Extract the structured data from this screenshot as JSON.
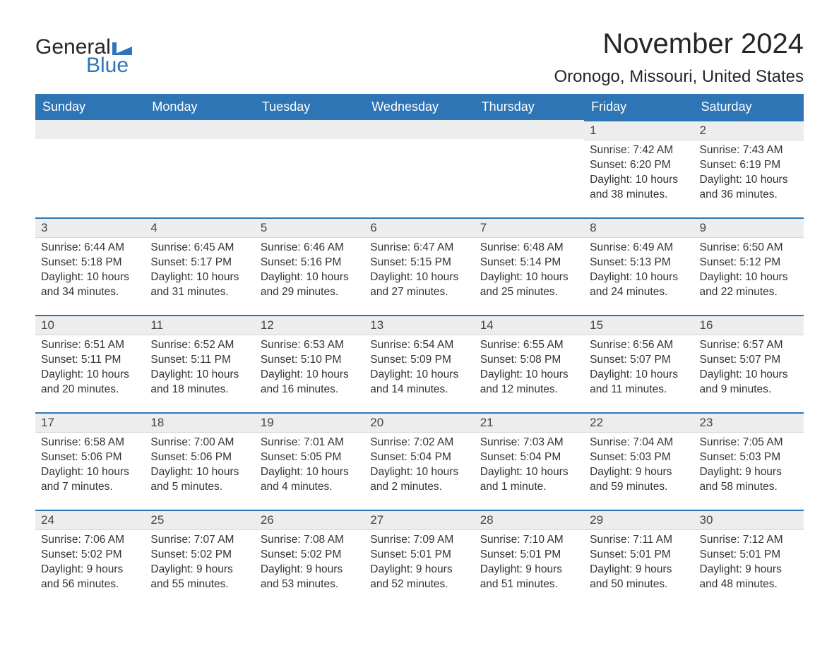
{
  "brand": {
    "text1": "General",
    "text2": "Blue",
    "flag_color": "#2e75b6"
  },
  "title": "November 2024",
  "location": "Oronogo, Missouri, United States",
  "colors": {
    "header_bg": "#2e75b6",
    "header_text": "#ffffff",
    "daynum_bg": "#ededed",
    "row_border": "#2e75b6",
    "body_text": "#333333",
    "page_bg": "#ffffff"
  },
  "fonts": {
    "title_size_pt": 30,
    "location_size_pt": 18,
    "th_size_pt": 14,
    "cell_size_pt": 12
  },
  "day_headers": [
    "Sunday",
    "Monday",
    "Tuesday",
    "Wednesday",
    "Thursday",
    "Friday",
    "Saturday"
  ],
  "weeks": [
    [
      null,
      null,
      null,
      null,
      null,
      {
        "n": "1",
        "sr": "Sunrise: 7:42 AM",
        "ss": "Sunset: 6:20 PM",
        "dl": "Daylight: 10 hours and 38 minutes."
      },
      {
        "n": "2",
        "sr": "Sunrise: 7:43 AM",
        "ss": "Sunset: 6:19 PM",
        "dl": "Daylight: 10 hours and 36 minutes."
      }
    ],
    [
      {
        "n": "3",
        "sr": "Sunrise: 6:44 AM",
        "ss": "Sunset: 5:18 PM",
        "dl": "Daylight: 10 hours and 34 minutes."
      },
      {
        "n": "4",
        "sr": "Sunrise: 6:45 AM",
        "ss": "Sunset: 5:17 PM",
        "dl": "Daylight: 10 hours and 31 minutes."
      },
      {
        "n": "5",
        "sr": "Sunrise: 6:46 AM",
        "ss": "Sunset: 5:16 PM",
        "dl": "Daylight: 10 hours and 29 minutes."
      },
      {
        "n": "6",
        "sr": "Sunrise: 6:47 AM",
        "ss": "Sunset: 5:15 PM",
        "dl": "Daylight: 10 hours and 27 minutes."
      },
      {
        "n": "7",
        "sr": "Sunrise: 6:48 AM",
        "ss": "Sunset: 5:14 PM",
        "dl": "Daylight: 10 hours and 25 minutes."
      },
      {
        "n": "8",
        "sr": "Sunrise: 6:49 AM",
        "ss": "Sunset: 5:13 PM",
        "dl": "Daylight: 10 hours and 24 minutes."
      },
      {
        "n": "9",
        "sr": "Sunrise: 6:50 AM",
        "ss": "Sunset: 5:12 PM",
        "dl": "Daylight: 10 hours and 22 minutes."
      }
    ],
    [
      {
        "n": "10",
        "sr": "Sunrise: 6:51 AM",
        "ss": "Sunset: 5:11 PM",
        "dl": "Daylight: 10 hours and 20 minutes."
      },
      {
        "n": "11",
        "sr": "Sunrise: 6:52 AM",
        "ss": "Sunset: 5:11 PM",
        "dl": "Daylight: 10 hours and 18 minutes."
      },
      {
        "n": "12",
        "sr": "Sunrise: 6:53 AM",
        "ss": "Sunset: 5:10 PM",
        "dl": "Daylight: 10 hours and 16 minutes."
      },
      {
        "n": "13",
        "sr": "Sunrise: 6:54 AM",
        "ss": "Sunset: 5:09 PM",
        "dl": "Daylight: 10 hours and 14 minutes."
      },
      {
        "n": "14",
        "sr": "Sunrise: 6:55 AM",
        "ss": "Sunset: 5:08 PM",
        "dl": "Daylight: 10 hours and 12 minutes."
      },
      {
        "n": "15",
        "sr": "Sunrise: 6:56 AM",
        "ss": "Sunset: 5:07 PM",
        "dl": "Daylight: 10 hours and 11 minutes."
      },
      {
        "n": "16",
        "sr": "Sunrise: 6:57 AM",
        "ss": "Sunset: 5:07 PM",
        "dl": "Daylight: 10 hours and 9 minutes."
      }
    ],
    [
      {
        "n": "17",
        "sr": "Sunrise: 6:58 AM",
        "ss": "Sunset: 5:06 PM",
        "dl": "Daylight: 10 hours and 7 minutes."
      },
      {
        "n": "18",
        "sr": "Sunrise: 7:00 AM",
        "ss": "Sunset: 5:06 PM",
        "dl": "Daylight: 10 hours and 5 minutes."
      },
      {
        "n": "19",
        "sr": "Sunrise: 7:01 AM",
        "ss": "Sunset: 5:05 PM",
        "dl": "Daylight: 10 hours and 4 minutes."
      },
      {
        "n": "20",
        "sr": "Sunrise: 7:02 AM",
        "ss": "Sunset: 5:04 PM",
        "dl": "Daylight: 10 hours and 2 minutes."
      },
      {
        "n": "21",
        "sr": "Sunrise: 7:03 AM",
        "ss": "Sunset: 5:04 PM",
        "dl": "Daylight: 10 hours and 1 minute."
      },
      {
        "n": "22",
        "sr": "Sunrise: 7:04 AM",
        "ss": "Sunset: 5:03 PM",
        "dl": "Daylight: 9 hours and 59 minutes."
      },
      {
        "n": "23",
        "sr": "Sunrise: 7:05 AM",
        "ss": "Sunset: 5:03 PM",
        "dl": "Daylight: 9 hours and 58 minutes."
      }
    ],
    [
      {
        "n": "24",
        "sr": "Sunrise: 7:06 AM",
        "ss": "Sunset: 5:02 PM",
        "dl": "Daylight: 9 hours and 56 minutes."
      },
      {
        "n": "25",
        "sr": "Sunrise: 7:07 AM",
        "ss": "Sunset: 5:02 PM",
        "dl": "Daylight: 9 hours and 55 minutes."
      },
      {
        "n": "26",
        "sr": "Sunrise: 7:08 AM",
        "ss": "Sunset: 5:02 PM",
        "dl": "Daylight: 9 hours and 53 minutes."
      },
      {
        "n": "27",
        "sr": "Sunrise: 7:09 AM",
        "ss": "Sunset: 5:01 PM",
        "dl": "Daylight: 9 hours and 52 minutes."
      },
      {
        "n": "28",
        "sr": "Sunrise: 7:10 AM",
        "ss": "Sunset: 5:01 PM",
        "dl": "Daylight: 9 hours and 51 minutes."
      },
      {
        "n": "29",
        "sr": "Sunrise: 7:11 AM",
        "ss": "Sunset: 5:01 PM",
        "dl": "Daylight: 9 hours and 50 minutes."
      },
      {
        "n": "30",
        "sr": "Sunrise: 7:12 AM",
        "ss": "Sunset: 5:01 PM",
        "dl": "Daylight: 9 hours and 48 minutes."
      }
    ]
  ]
}
